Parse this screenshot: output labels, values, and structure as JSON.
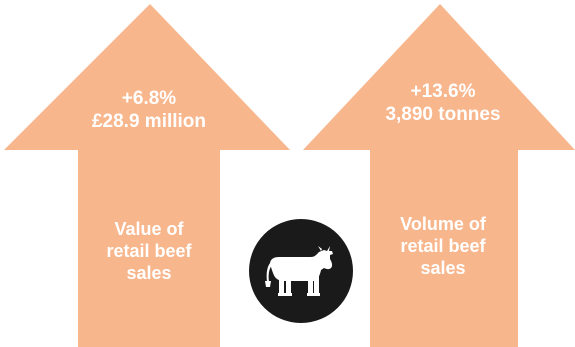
{
  "colors": {
    "arrow": "#f8b68c",
    "badge": "#1a1a1a",
    "text": "#ffffff"
  },
  "left_arrow": {
    "change": "+6.8%",
    "amount": "£28.9 million",
    "label_lines": [
      "Value of",
      "retail beef",
      "sales"
    ]
  },
  "right_arrow": {
    "change": "+13.6%",
    "amount": "3,890 tonnes",
    "label_lines": [
      "Volume of",
      "retail beef",
      "sales"
    ]
  },
  "icon": "cow-icon"
}
